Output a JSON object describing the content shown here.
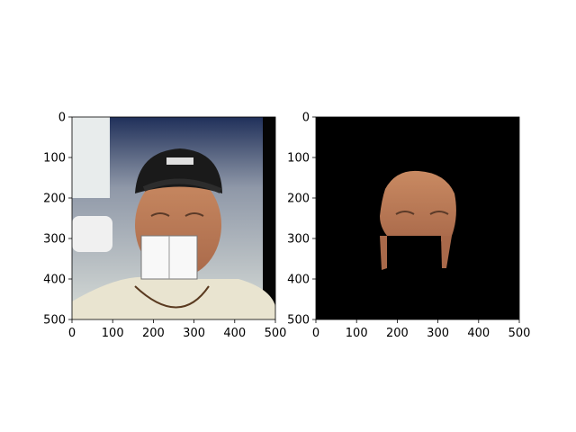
{
  "chart_data": [
    {
      "type": "image",
      "title": "",
      "xlabel": "",
      "ylabel": "",
      "xlim": [
        0,
        500
      ],
      "ylim": [
        500,
        0
      ],
      "xticks": [
        0,
        100,
        200,
        300,
        400,
        500
      ],
      "yticks": [
        0,
        100,
        200,
        300,
        400,
        500
      ],
      "grid": false,
      "content": "photo of a smiling man in a dark cap with a white rectangular patch covering the mouth area",
      "background": "#c9cfc9"
    },
    {
      "type": "image",
      "title": "",
      "xlabel": "",
      "ylabel": "",
      "xlim": [
        0,
        500
      ],
      "ylim": [
        500,
        0
      ],
      "xticks": [
        0,
        100,
        200,
        300,
        400,
        500
      ],
      "yticks": [
        0,
        100,
        200,
        300,
        400,
        500
      ],
      "grid": false,
      "content": "segmented face region on black background with the mouth area removed",
      "background": "#000000"
    }
  ]
}
